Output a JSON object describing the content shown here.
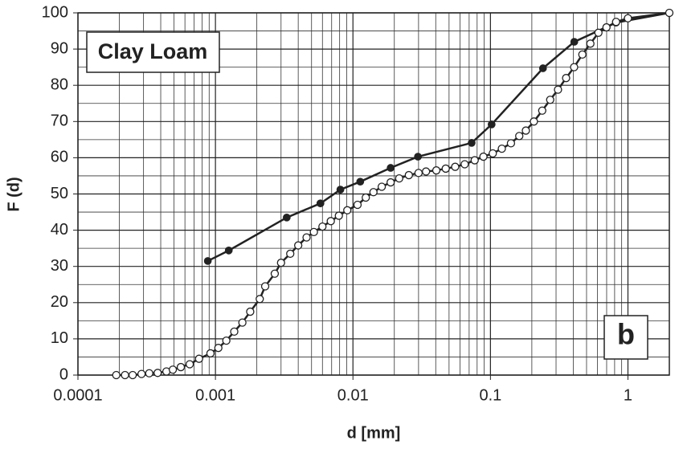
{
  "chart_data": {
    "type": "line",
    "xlabel": "d [mm]",
    "ylabel": "F (d)",
    "annotations": [
      "Clay Loam",
      "b"
    ],
    "xscale": "log",
    "xlim": [
      0.0001,
      2
    ],
    "xticks": [
      0.0001,
      0.001,
      0.01,
      0.1,
      1
    ],
    "ylim": [
      0,
      100
    ],
    "yticks": [
      0,
      10,
      20,
      30,
      40,
      50,
      60,
      70,
      80,
      90,
      100
    ],
    "grid": true,
    "minor_grid": true,
    "series": [
      {
        "color": "#222222",
        "marker": "filled",
        "x": [
          0.00088,
          0.00125,
          0.0033,
          0.0058,
          0.0081,
          0.0113,
          0.0188,
          0.0297,
          0.073,
          0.102,
          0.241,
          0.407,
          0.818,
          2
        ],
        "values": [
          31.5,
          34.4,
          43.5,
          47.4,
          51.2,
          53.4,
          57.2,
          60.3,
          64.1,
          69.2,
          84.7,
          92.0,
          97.3,
          100
        ]
      },
      {
        "color": "#222222",
        "marker": "open",
        "x": [
          0.00019,
          0.00022,
          0.00025,
          0.00029,
          0.00033,
          0.00038,
          0.00044,
          0.00049,
          0.00056,
          0.00065,
          0.00076,
          0.00092,
          0.00105,
          0.0012,
          0.00137,
          0.00157,
          0.00179,
          0.0021,
          0.0023,
          0.0027,
          0.003,
          0.0035,
          0.004,
          0.0046,
          0.0052,
          0.006,
          0.0069,
          0.0079,
          0.0091,
          0.0108,
          0.0124,
          0.0141,
          0.0162,
          0.0188,
          0.0217,
          0.0255,
          0.03,
          0.034,
          0.0404,
          0.0473,
          0.0554,
          0.065,
          0.0768,
          0.0889,
          0.104,
          0.121,
          0.141,
          0.162,
          0.181,
          0.207,
          0.238,
          0.272,
          0.31,
          0.355,
          0.406,
          0.466,
          0.533,
          0.61,
          0.698,
          0.82,
          1,
          2
        ],
        "values": [
          0,
          0,
          0,
          0.3,
          0.5,
          0.6,
          1,
          1.5,
          2.2,
          3,
          4.5,
          6,
          7.5,
          9.5,
          12,
          14.5,
          17.5,
          21,
          24.5,
          28,
          31,
          33.5,
          35.8,
          38,
          39.5,
          41,
          42.5,
          44,
          45.5,
          47,
          49,
          50.5,
          52,
          53.2,
          54.3,
          55.2,
          55.8,
          56.2,
          56.5,
          57,
          57.5,
          58.2,
          59.3,
          60.3,
          61.2,
          62.5,
          64,
          66,
          67.5,
          70,
          73,
          76,
          78.8,
          82,
          85,
          88.5,
          91.5,
          94.5,
          96,
          97.5,
          98.5,
          100
        ]
      }
    ]
  }
}
